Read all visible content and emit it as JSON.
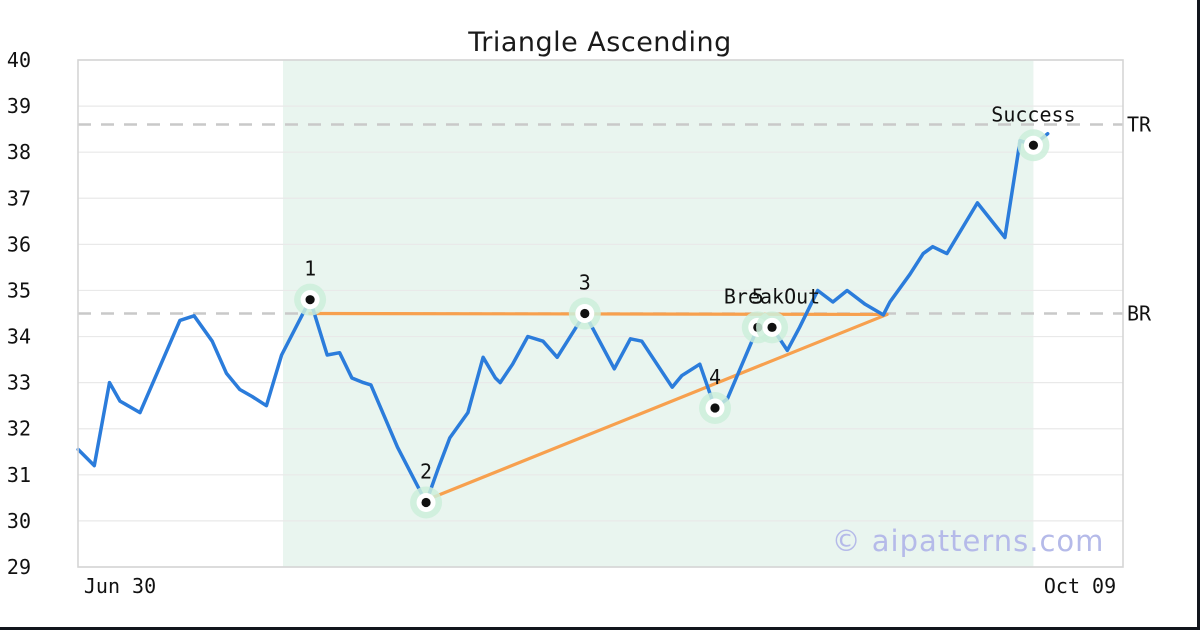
{
  "title": "Triangle Ascending",
  "watermark": "© aipatterns.com",
  "chart_data": {
    "type": "line",
    "title": "Triangle Ascending",
    "x_axis": {
      "unit": "days since Jun 30",
      "tick_labels": [
        "Jun 30",
        "Oct 09"
      ],
      "tick_days": [
        0,
        101
      ],
      "range_days": [
        -4.42,
        105.5
      ]
    },
    "y_axis": {
      "min": 29,
      "max": 40,
      "tick_step": 1,
      "ticks": [
        29,
        30,
        31,
        32,
        33,
        34,
        35,
        36,
        37,
        38,
        39,
        40
      ],
      "grid": "horizontal"
    },
    "series": [
      {
        "name": "price",
        "points": [
          [
            -4.4,
            31.55
          ],
          [
            -2.7,
            31.2
          ],
          [
            -1.1,
            33.0
          ],
          [
            0.0,
            32.6
          ],
          [
            2.1,
            32.35
          ],
          [
            6.3,
            34.35
          ],
          [
            7.8,
            34.45
          ],
          [
            9.7,
            33.9
          ],
          [
            11.2,
            33.2
          ],
          [
            12.6,
            32.85
          ],
          [
            13.9,
            32.7
          ],
          [
            15.4,
            32.5
          ],
          [
            17.0,
            33.6
          ],
          [
            20.0,
            34.8
          ],
          [
            21.8,
            33.6
          ],
          [
            23.1,
            33.65
          ],
          [
            24.4,
            33.1
          ],
          [
            25.6,
            33.0
          ],
          [
            26.4,
            32.95
          ],
          [
            29.2,
            31.6
          ],
          [
            32.2,
            30.4
          ],
          [
            33.5,
            31.15
          ],
          [
            34.7,
            31.8
          ],
          [
            36.6,
            32.35
          ],
          [
            38.2,
            33.55
          ],
          [
            39.5,
            33.1
          ],
          [
            40.0,
            33.0
          ],
          [
            41.3,
            33.4
          ],
          [
            42.9,
            34.0
          ],
          [
            44.5,
            33.9
          ],
          [
            46.0,
            33.55
          ],
          [
            48.9,
            34.5
          ],
          [
            52.0,
            33.3
          ],
          [
            53.7,
            33.95
          ],
          [
            54.9,
            33.9
          ],
          [
            58.1,
            32.9
          ],
          [
            59.1,
            33.15
          ],
          [
            61.0,
            33.4
          ],
          [
            62.6,
            32.45
          ],
          [
            63.9,
            32.65
          ],
          [
            67.1,
            34.2
          ],
          [
            68.0,
            34.05
          ],
          [
            68.6,
            34.2
          ],
          [
            70.2,
            33.7
          ],
          [
            71.5,
            34.2
          ],
          [
            73.4,
            35.0
          ],
          [
            75.0,
            34.75
          ],
          [
            76.5,
            35.0
          ],
          [
            78.4,
            34.7
          ],
          [
            80.3,
            34.47
          ],
          [
            81.0,
            34.75
          ],
          [
            83.1,
            35.35
          ],
          [
            84.5,
            35.8
          ],
          [
            85.5,
            35.95
          ],
          [
            87.0,
            35.8
          ],
          [
            90.2,
            36.9
          ],
          [
            93.1,
            36.15
          ],
          [
            94.7,
            38.25
          ],
          [
            96.1,
            38.15
          ],
          [
            97.6,
            38.4
          ]
        ]
      }
    ],
    "pattern_region": {
      "day_start": 17.15,
      "day_end": 96.1
    },
    "trendlines": [
      {
        "name": "resistance",
        "points": [
          [
            20.0,
            34.5
          ],
          [
            80.7,
            34.48
          ]
        ]
      },
      {
        "name": "support",
        "points": [
          [
            32.2,
            30.45
          ],
          [
            80.7,
            34.48
          ]
        ]
      }
    ],
    "guides": [
      {
        "label": "TR",
        "value": 38.6
      },
      {
        "label": "BR",
        "value": 34.5
      }
    ],
    "markers": [
      {
        "label": "1",
        "day": 20.0,
        "price": 34.8
      },
      {
        "label": "2",
        "day": 32.2,
        "price": 30.4
      },
      {
        "label": "3",
        "day": 48.9,
        "price": 34.5
      },
      {
        "label": "4",
        "day": 62.6,
        "price": 32.45
      },
      {
        "label": "5",
        "day": 67.1,
        "price": 34.2
      },
      {
        "label": "BreakOut",
        "day": 68.6,
        "price": 34.2
      },
      {
        "label": "Success",
        "day": 96.1,
        "price": 38.15
      }
    ],
    "colors": {
      "price_line": "#2b7cdb",
      "trendline": "#f7a04e",
      "pattern_region_fill": "#e9f5ef",
      "marker_halo": "#cdeeda",
      "marker_dot": "#111111",
      "guide_line": "#c9c9c9",
      "gridline": "#e9e9e9",
      "plot_border": "#d5d5d5",
      "text": "#111111",
      "watermark": "#b5bae9",
      "window_edge": "#12151c"
    },
    "legend": "none"
  }
}
